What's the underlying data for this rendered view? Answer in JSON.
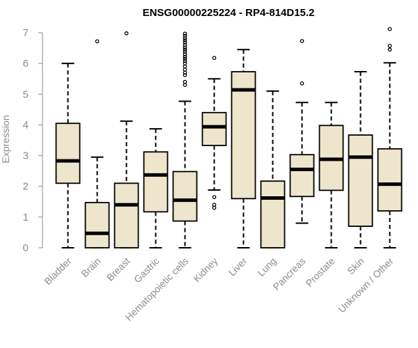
{
  "chart_data": {
    "type": "boxplot",
    "title": "ENSG00000225224 - RP4-814D15.2",
    "xlabel": "",
    "ylabel": "Expression",
    "ylim": [
      0,
      7
    ],
    "yticks": [
      0,
      1,
      2,
      3,
      4,
      5,
      6,
      7
    ],
    "grid": false,
    "box_fill": "#ede6cc",
    "stroke": "#000000",
    "axis_color": "#8c8c8c",
    "categories": [
      "Bladder",
      "Brain",
      "Breast",
      "Gastric",
      "Hematopoietic cells",
      "Kidney",
      "Liver",
      "Lung",
      "Pancreas",
      "Prostate",
      "Skin",
      "Unknown / Other"
    ],
    "boxes": [
      {
        "label": "Bladder",
        "min": 0,
        "q1": 2.1,
        "median": 2.83,
        "q3": 4.05,
        "max": 6.0,
        "outliers": []
      },
      {
        "label": "Brain",
        "min": 0,
        "q1": 0,
        "median": 0.47,
        "q3": 1.47,
        "max": 2.95,
        "outliers": [
          6.72
        ]
      },
      {
        "label": "Breast",
        "min": 0,
        "q1": 0,
        "median": 1.4,
        "q3": 2.1,
        "max": 4.12,
        "outliers": [
          6.98
        ]
      },
      {
        "label": "Gastric",
        "min": 0,
        "q1": 1.17,
        "median": 2.37,
        "q3": 3.12,
        "max": 3.87,
        "outliers": []
      },
      {
        "label": "Hematopoietic cells",
        "min": 0,
        "q1": 0.87,
        "median": 1.55,
        "q3": 2.48,
        "max": 4.77,
        "outliers": [
          5.3,
          5.4,
          5.62,
          5.7,
          5.8,
          5.9,
          6.0,
          6.08,
          6.15,
          6.22,
          6.3,
          6.38,
          6.45,
          6.52,
          6.6,
          6.68,
          6.75,
          6.82,
          6.9,
          6.97
        ]
      },
      {
        "label": "Kidney",
        "min": 1.88,
        "q1": 3.33,
        "median": 3.94,
        "q3": 4.4,
        "max": 5.5,
        "outliers": [
          6.18,
          1.65,
          1.4,
          1.3
        ]
      },
      {
        "label": "Liver",
        "min": 0,
        "q1": 1.6,
        "median": 5.14,
        "q3": 5.73,
        "max": 6.45,
        "outliers": []
      },
      {
        "label": "Lung",
        "min": 0,
        "q1": 0,
        "median": 1.62,
        "q3": 2.17,
        "max": 5.1,
        "outliers": []
      },
      {
        "label": "Pancreas",
        "min": 0.8,
        "q1": 1.67,
        "median": 2.55,
        "q3": 3.03,
        "max": 4.73,
        "outliers": [
          5.35,
          6.73
        ]
      },
      {
        "label": "Prostate",
        "min": 0,
        "q1": 1.87,
        "median": 2.88,
        "q3": 3.98,
        "max": 4.73,
        "outliers": []
      },
      {
        "label": "Skin",
        "min": 0,
        "q1": 0.7,
        "median": 2.95,
        "q3": 3.67,
        "max": 5.73,
        "outliers": []
      },
      {
        "label": "Unknown / Other",
        "min": 0,
        "q1": 1.2,
        "median": 2.07,
        "q3": 3.22,
        "max": 6.02,
        "outliers": [
          6.45,
          6.57,
          7.12
        ]
      }
    ]
  }
}
